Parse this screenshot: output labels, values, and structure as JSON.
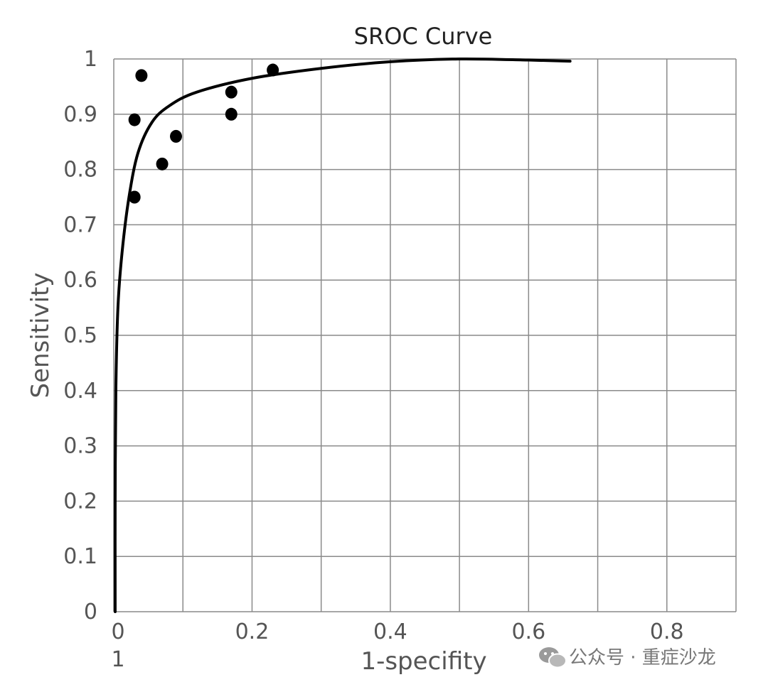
{
  "chart_data": {
    "type": "scatter",
    "title": "SROC Curve",
    "xlabel": "1-specifity",
    "ylabel": "Sensitivity",
    "xlim": [
      0,
      0.9
    ],
    "ylim": [
      0,
      1
    ],
    "grid": true,
    "x_ticks": [
      "0",
      "0.2",
      "0.4",
      "0.6",
      "0.8"
    ],
    "x_tick_values": [
      0,
      0.2,
      0.4,
      0.6,
      0.8
    ],
    "x_secondary_label": "1",
    "y_ticks": [
      "0",
      "0.1",
      "0.2",
      "0.3",
      "0.4",
      "0.5",
      "0.6",
      "0.7",
      "0.8",
      "0.9",
      "1"
    ],
    "y_tick_values": [
      0,
      0.1,
      0.2,
      0.3,
      0.4,
      0.5,
      0.6,
      0.7,
      0.8,
      0.9,
      1
    ],
    "grid_x_values": [
      0,
      0.1,
      0.2,
      0.3,
      0.4,
      0.5,
      0.6,
      0.7,
      0.8,
      0.9
    ],
    "points": [
      {
        "x": 0.04,
        "y": 0.97
      },
      {
        "x": 0.03,
        "y": 0.89
      },
      {
        "x": 0.03,
        "y": 0.75
      },
      {
        "x": 0.07,
        "y": 0.81
      },
      {
        "x": 0.09,
        "y": 0.86
      },
      {
        "x": 0.17,
        "y": 0.9
      },
      {
        "x": 0.17,
        "y": 0.94
      },
      {
        "x": 0.23,
        "y": 0.98
      }
    ],
    "curve": [
      {
        "x": 0.002,
        "y": 0.0
      },
      {
        "x": 0.002,
        "y": 0.2
      },
      {
        "x": 0.003,
        "y": 0.4
      },
      {
        "x": 0.006,
        "y": 0.55
      },
      {
        "x": 0.012,
        "y": 0.65
      },
      {
        "x": 0.022,
        "y": 0.75
      },
      {
        "x": 0.035,
        "y": 0.83
      },
      {
        "x": 0.055,
        "y": 0.885
      },
      {
        "x": 0.08,
        "y": 0.915
      },
      {
        "x": 0.12,
        "y": 0.94
      },
      {
        "x": 0.2,
        "y": 0.965
      },
      {
        "x": 0.3,
        "y": 0.983
      },
      {
        "x": 0.4,
        "y": 0.995
      },
      {
        "x": 0.5,
        "y": 1.0
      },
      {
        "x": 0.6,
        "y": 0.998
      },
      {
        "x": 0.66,
        "y": 0.996
      }
    ]
  },
  "watermark": {
    "icon": "wechat-icon",
    "text": "公众号 · 重症沙龙"
  }
}
